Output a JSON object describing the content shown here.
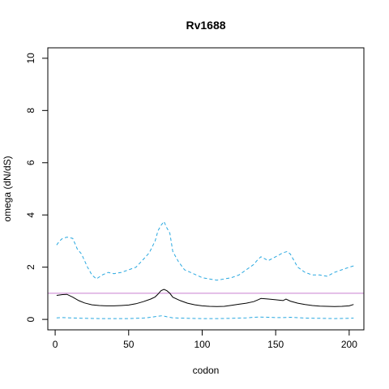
{
  "chart_data": {
    "type": "line",
    "title": "Rv1688",
    "xlabel": "codon",
    "ylabel": "omega (dN/dS)",
    "xlim": [
      -5,
      210
    ],
    "ylim": [
      -0.4,
      10.4
    ],
    "x_ticks": [
      0,
      50,
      100,
      150,
      200
    ],
    "y_ticks": [
      0,
      2,
      4,
      6,
      8,
      10
    ],
    "x_tick_labels": [
      "0",
      "50",
      "100",
      "150",
      "200"
    ],
    "y_tick_labels": [
      "0",
      "2",
      "4",
      "6",
      "8",
      "10"
    ],
    "grid": false,
    "legend": "none",
    "reference_line": {
      "y": 1,
      "color": "#c97fd0"
    },
    "series": [
      {
        "style": "solid",
        "color": "#000000",
        "x": [
          1,
          5,
          8,
          12,
          16,
          20,
          25,
          30,
          35,
          40,
          45,
          50,
          55,
          60,
          65,
          68,
          70,
          72,
          74,
          76,
          78,
          80,
          85,
          90,
          95,
          100,
          105,
          110,
          115,
          120,
          125,
          130,
          135,
          138,
          140,
          145,
          150,
          155,
          157,
          160,
          165,
          170,
          175,
          180,
          185,
          190,
          195,
          200,
          203
        ],
        "y": [
          0.92,
          0.95,
          0.96,
          0.85,
          0.72,
          0.63,
          0.56,
          0.53,
          0.52,
          0.52,
          0.53,
          0.55,
          0.6,
          0.68,
          0.78,
          0.86,
          0.97,
          1.1,
          1.15,
          1.1,
          1.0,
          0.85,
          0.72,
          0.62,
          0.56,
          0.52,
          0.5,
          0.49,
          0.5,
          0.54,
          0.58,
          0.62,
          0.68,
          0.75,
          0.8,
          0.78,
          0.75,
          0.72,
          0.78,
          0.7,
          0.62,
          0.57,
          0.53,
          0.51,
          0.5,
          0.49,
          0.5,
          0.52,
          0.57
        ]
      },
      {
        "style": "dashed",
        "color": "#29a8e0",
        "x": [
          1,
          3,
          5,
          8,
          12,
          15,
          18,
          22,
          25,
          28,
          32,
          36,
          40,
          45,
          50,
          55,
          60,
          64,
          68,
          70,
          72,
          74,
          76,
          78,
          80,
          84,
          88,
          92,
          96,
          100,
          105,
          110,
          115,
          120,
          125,
          130,
          135,
          138,
          140,
          145,
          150,
          155,
          158,
          160,
          165,
          170,
          175,
          180,
          185,
          190,
          195,
          200,
          203
        ],
        "y": [
          2.85,
          3.0,
          3.1,
          3.15,
          3.1,
          2.7,
          2.5,
          2.0,
          1.7,
          1.55,
          1.7,
          1.8,
          1.75,
          1.8,
          1.9,
          2.0,
          2.3,
          2.55,
          3.0,
          3.4,
          3.6,
          3.75,
          3.5,
          3.3,
          2.6,
          2.2,
          1.9,
          1.8,
          1.7,
          1.6,
          1.55,
          1.5,
          1.55,
          1.6,
          1.7,
          1.9,
          2.1,
          2.3,
          2.4,
          2.25,
          2.4,
          2.55,
          2.6,
          2.5,
          2.0,
          1.8,
          1.7,
          1.7,
          1.65,
          1.8,
          1.9,
          2.0,
          2.05
        ]
      },
      {
        "style": "dashed",
        "color": "#29a8e0",
        "x": [
          1,
          5,
          10,
          15,
          20,
          30,
          40,
          50,
          60,
          65,
          70,
          73,
          76,
          80,
          90,
          100,
          110,
          120,
          130,
          138,
          145,
          150,
          155,
          160,
          170,
          180,
          190,
          200,
          203
        ],
        "y": [
          0.06,
          0.07,
          0.06,
          0.05,
          0.04,
          0.03,
          0.03,
          0.03,
          0.05,
          0.08,
          0.12,
          0.14,
          0.1,
          0.06,
          0.04,
          0.03,
          0.03,
          0.04,
          0.06,
          0.09,
          0.08,
          0.07,
          0.07,
          0.08,
          0.05,
          0.04,
          0.03,
          0.04,
          0.05
        ]
      }
    ]
  }
}
